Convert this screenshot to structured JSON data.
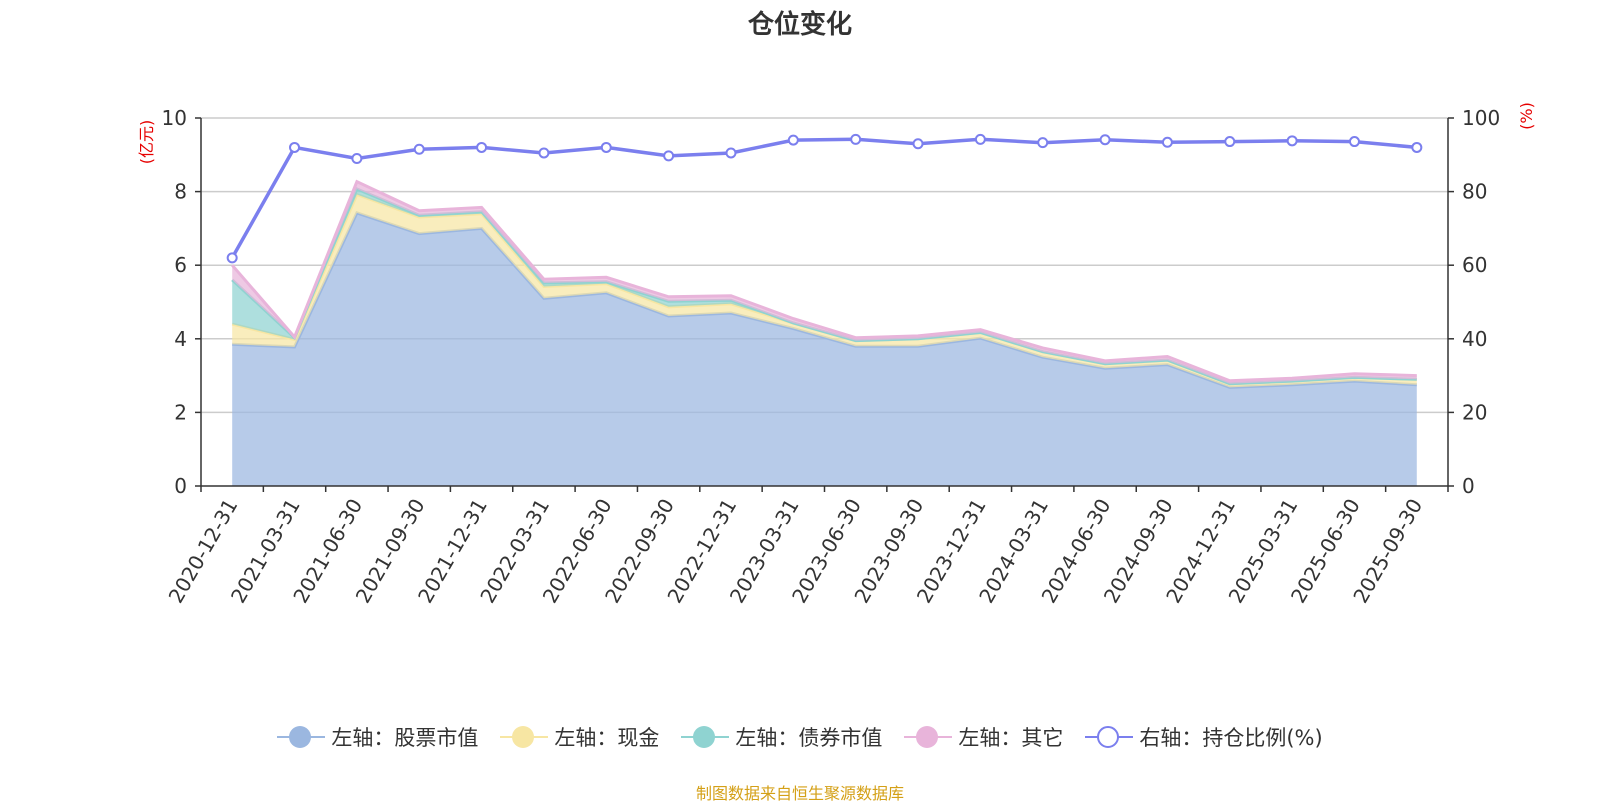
{
  "title": "仓位变化",
  "footer": "制图数据来自恒生聚源数据库",
  "left_unit": "(亿元)",
  "right_unit": "(%)",
  "legend": [
    {
      "label": "左轴：股票市值",
      "color": "#9bb7e0",
      "style": "filled"
    },
    {
      "label": "左轴：现金",
      "color": "#f7e6a3",
      "style": "filled"
    },
    {
      "label": "左轴：债券市值",
      "color": "#8fd3d1",
      "style": "filled"
    },
    {
      "label": "左轴：其它",
      "color": "#e8b4da",
      "style": "filled"
    },
    {
      "label": "右轴：持仓比例(%)",
      "color": "#7b7fee",
      "style": "hollow"
    }
  ],
  "chart_data": {
    "type": "area",
    "stacked": true,
    "title": "仓位变化",
    "categories": [
      "2020-12-31",
      "2021-03-31",
      "2021-06-30",
      "2021-09-30",
      "2021-12-31",
      "2022-03-31",
      "2022-06-30",
      "2022-09-30",
      "2022-12-31",
      "2023-03-31",
      "2023-06-30",
      "2023-09-30",
      "2023-12-31",
      "2024-03-31",
      "2024-06-30",
      "2024-09-30",
      "2024-12-31",
      "2025-03-31",
      "2025-06-30",
      "2025-09-30"
    ],
    "y_left": {
      "label": "(亿元)",
      "min": 0,
      "max": 10,
      "ticks": [
        0,
        2,
        4,
        6,
        8,
        10
      ]
    },
    "y_right": {
      "label": "(%)",
      "min": 0,
      "max": 100,
      "ticks": [
        0,
        20,
        40,
        60,
        80,
        100
      ]
    },
    "grid": true,
    "legend_position": "bottom",
    "series": [
      {
        "name": "左轴：股票市值",
        "axis": "left",
        "color": "#9bb7e0",
        "values": [
          3.85,
          3.78,
          7.42,
          6.86,
          7.0,
          5.1,
          5.25,
          4.62,
          4.7,
          4.28,
          3.8,
          3.8,
          4.02,
          3.5,
          3.2,
          3.3,
          2.68,
          2.75,
          2.85,
          2.75
        ]
      },
      {
        "name": "左轴：现金",
        "axis": "left",
        "color": "#f7e6a3",
        "values": [
          0.55,
          0.2,
          0.5,
          0.45,
          0.4,
          0.32,
          0.25,
          0.25,
          0.25,
          0.15,
          0.15,
          0.2,
          0.15,
          0.15,
          0.12,
          0.12,
          0.1,
          0.1,
          0.1,
          0.15
        ]
      },
      {
        "name": "左轴：债券市值",
        "axis": "left",
        "color": "#8fd3d1",
        "values": [
          1.2,
          0.05,
          0.15,
          0.05,
          0.05,
          0.1,
          0.05,
          0.15,
          0.1,
          0.0,
          0.0,
          0.0,
          0.0,
          0.0,
          0.0,
          0.0,
          0.0,
          0.0,
          0.0,
          0.0
        ]
      },
      {
        "name": "左轴：其它",
        "axis": "left",
        "color": "#e8b4da",
        "values": [
          0.4,
          0.02,
          0.2,
          0.12,
          0.12,
          0.1,
          0.12,
          0.12,
          0.12,
          0.12,
          0.08,
          0.08,
          0.08,
          0.1,
          0.08,
          0.1,
          0.08,
          0.08,
          0.1,
          0.1
        ]
      },
      {
        "name": "右轴：持仓比例(%)",
        "axis": "right",
        "type": "line",
        "color": "#7b7fee",
        "values": [
          62,
          92,
          89,
          91.5,
          92,
          90.5,
          92,
          89.7,
          90.5,
          94,
          94.2,
          93,
          94.2,
          93.3,
          94.1,
          93.4,
          93.6,
          93.8,
          93.6,
          92
        ]
      }
    ]
  }
}
